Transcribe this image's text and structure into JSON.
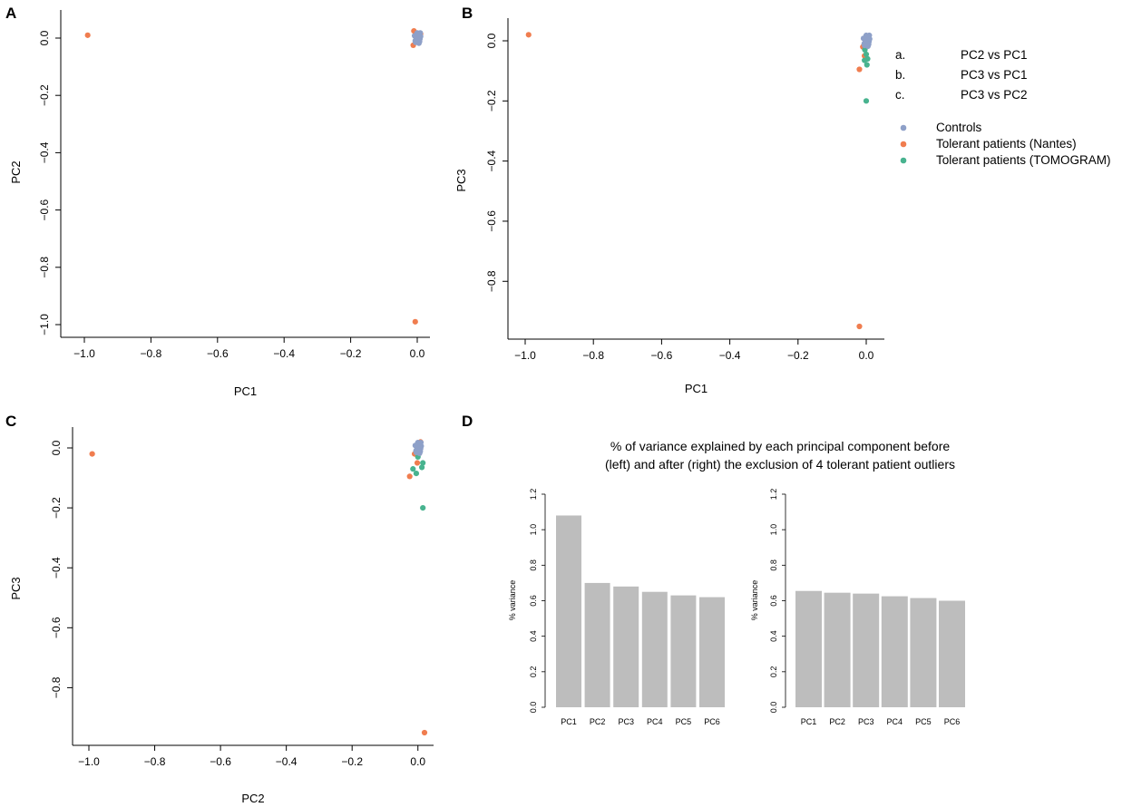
{
  "panel_letters": {
    "a": "A",
    "b": "B",
    "c": "C",
    "d": "D"
  },
  "legend": {
    "panels": [
      {
        "letter": "a.",
        "label": "PC2 vs PC1"
      },
      {
        "letter": "b.",
        "label": "PC3 vs PC1"
      },
      {
        "letter": "c.",
        "label": "PC3 vs PC2"
      }
    ],
    "groups": [
      {
        "label": "Controls",
        "color": "#8ea0c8"
      },
      {
        "label": "Tolerant patients (Nantes)",
        "color": "#f07d4f"
      },
      {
        "label": "Tolerant patients (TOMOGRAM)",
        "color": "#48b38f"
      }
    ]
  },
  "chart_data": [
    {
      "id": "A",
      "type": "scatter",
      "title": "",
      "xlabel": "PC1",
      "ylabel": "PC2",
      "xlim": [
        -1.0,
        0.0
      ],
      "ylim": [
        -1.0,
        0.0
      ],
      "xticks": [
        -1.0,
        -0.8,
        -0.6,
        -0.4,
        -0.2,
        0.0
      ],
      "yticks": [
        0.0,
        -0.2,
        -0.4,
        -0.6,
        -0.8,
        -1.0
      ],
      "xtick_labels": [
        "−1.0",
        "−0.8",
        "−0.6",
        "−0.4",
        "−0.2",
        "0.0"
      ],
      "ytick_labels": [
        "0.0",
        "−0.2",
        "−0.4",
        "−0.6",
        "−0.8",
        "−1.0"
      ],
      "series": [
        {
          "name": "Controls",
          "color": "#8ea0c8",
          "points": [
            [
              0.0,
              0.0
            ],
            [
              0.004,
              0.01
            ],
            [
              -0.004,
              0.004
            ],
            [
              0.008,
              -0.003
            ],
            [
              0.002,
              -0.008
            ],
            [
              -0.006,
              -0.01
            ],
            [
              0.006,
              0.014
            ],
            [
              0.0,
              0.018
            ],
            [
              -0.003,
              -0.004
            ],
            [
              0.01,
              0.006
            ],
            [
              -0.008,
              0.008
            ],
            [
              0.003,
              0.003
            ],
            [
              0.007,
              -0.012
            ],
            [
              -0.002,
              0.012
            ],
            [
              0.009,
              0.018
            ],
            [
              -0.005,
              -0.015
            ],
            [
              0.005,
              -0.018
            ],
            [
              0.001,
              0.007
            ]
          ]
        },
        {
          "name": "Tolerant patients (Nantes)",
          "color": "#f07d4f",
          "points": [
            [
              -0.99,
              0.01
            ],
            [
              -0.006,
              -0.99
            ],
            [
              -0.01,
              0.025
            ],
            [
              -0.012,
              -0.025
            ],
            [
              0.006,
              -0.012
            ],
            [
              0.01,
              0.015
            ]
          ]
        },
        {
          "name": "Tolerant patients (TOMOGRAM)",
          "color": "#48b38f",
          "points": [
            [
              0.002,
              -0.005
            ],
            [
              -0.003,
              0.006
            ],
            [
              0.006,
              0.002
            ],
            [
              -0.005,
              -0.008
            ],
            [
              0.004,
              0.01
            ],
            [
              0.0,
              -0.003
            ]
          ]
        }
      ]
    },
    {
      "id": "B",
      "type": "scatter",
      "title": "",
      "xlabel": "PC1",
      "ylabel": "PC3",
      "xlim": [
        -1.0,
        0.0
      ],
      "ylim": [
        -0.95,
        0.0
      ],
      "xticks": [
        -1.0,
        -0.8,
        -0.6,
        -0.4,
        -0.2,
        0.0
      ],
      "yticks": [
        0.0,
        -0.2,
        -0.4,
        -0.6,
        -0.8
      ],
      "xtick_labels": [
        "−1.0",
        "−0.8",
        "−0.6",
        "−0.4",
        "−0.2",
        "0.0"
      ],
      "ytick_labels": [
        "0.0",
        "−0.2",
        "−0.4",
        "−0.6",
        "−0.8"
      ],
      "series": [
        {
          "name": "Controls",
          "color": "#8ea0c8",
          "points": [
            [
              0.0,
              0.0
            ],
            [
              0.004,
              0.01
            ],
            [
              -0.004,
              0.004
            ],
            [
              0.008,
              -0.003
            ],
            [
              0.002,
              -0.008
            ],
            [
              -0.006,
              -0.01
            ],
            [
              0.006,
              0.014
            ],
            [
              0.0,
              0.018
            ],
            [
              -0.003,
              -0.004
            ],
            [
              0.01,
              0.006
            ],
            [
              -0.008,
              0.008
            ],
            [
              0.003,
              0.003
            ],
            [
              0.007,
              -0.012
            ],
            [
              -0.002,
              0.012
            ],
            [
              0.009,
              0.018
            ],
            [
              -0.005,
              -0.015
            ],
            [
              0.005,
              -0.018
            ],
            [
              0.001,
              0.007
            ]
          ]
        },
        {
          "name": "Tolerant patients (Nantes)",
          "color": "#f07d4f",
          "points": [
            [
              -0.99,
              0.02
            ],
            [
              -0.02,
              -0.95
            ],
            [
              -0.02,
              -0.095
            ],
            [
              -0.005,
              -0.05
            ],
            [
              -0.01,
              -0.02
            ],
            [
              0.006,
              -0.012
            ]
          ]
        },
        {
          "name": "Tolerant patients (TOMOGRAM)",
          "color": "#48b38f",
          "points": [
            [
              0.0,
              -0.2
            ],
            [
              -0.005,
              -0.065
            ],
            [
              0.002,
              -0.08
            ],
            [
              0.0,
              -0.045
            ],
            [
              -0.004,
              -0.03
            ],
            [
              0.004,
              -0.06
            ]
          ]
        }
      ]
    },
    {
      "id": "C",
      "type": "scatter",
      "title": "",
      "xlabel": "PC2",
      "ylabel": "PC3",
      "xlim": [
        -1.0,
        0.02
      ],
      "ylim": [
        -0.95,
        0.0
      ],
      "xticks": [
        -1.0,
        -0.8,
        -0.6,
        -0.4,
        -0.2,
        0.0
      ],
      "yticks": [
        0.0,
        -0.2,
        -0.4,
        -0.6,
        -0.8
      ],
      "xtick_labels": [
        "−1.0",
        "−0.8",
        "−0.6",
        "−0.4",
        "−0.2",
        "0.0"
      ],
      "ytick_labels": [
        "0.0",
        "−0.2",
        "−0.4",
        "−0.6",
        "−0.8"
      ],
      "series": [
        {
          "name": "Controls",
          "color": "#8ea0c8",
          "points": [
            [
              0.0,
              0.0
            ],
            [
              0.004,
              0.01
            ],
            [
              -0.004,
              0.004
            ],
            [
              0.008,
              -0.003
            ],
            [
              0.002,
              -0.008
            ],
            [
              -0.006,
              -0.01
            ],
            [
              0.006,
              0.014
            ],
            [
              0.0,
              0.018
            ],
            [
              -0.003,
              -0.004
            ],
            [
              0.01,
              0.006
            ],
            [
              -0.008,
              0.008
            ],
            [
              0.003,
              0.003
            ],
            [
              0.007,
              -0.012
            ],
            [
              -0.002,
              0.012
            ],
            [
              0.009,
              0.018
            ],
            [
              -0.005,
              -0.015
            ],
            [
              0.005,
              -0.018
            ],
            [
              0.001,
              0.007
            ]
          ]
        },
        {
          "name": "Tolerant patients (Nantes)",
          "color": "#f07d4f",
          "points": [
            [
              -0.99,
              -0.02
            ],
            [
              0.02,
              -0.95
            ],
            [
              -0.025,
              -0.095
            ],
            [
              -0.002,
              -0.05
            ],
            [
              -0.01,
              -0.02
            ],
            [
              0.008,
              0.02
            ],
            [
              0.003,
              -0.012
            ]
          ]
        },
        {
          "name": "Tolerant patients (TOMOGRAM)",
          "color": "#48b38f",
          "points": [
            [
              0.015,
              -0.2
            ],
            [
              -0.015,
              -0.07
            ],
            [
              -0.005,
              -0.085
            ],
            [
              0.012,
              -0.065
            ],
            [
              0.015,
              -0.05
            ],
            [
              0.0,
              -0.03
            ]
          ]
        }
      ]
    },
    {
      "id": "D1",
      "type": "bar",
      "title": "",
      "xlabel": "",
      "ylabel": "% variance",
      "ylim": [
        0.0,
        1.2
      ],
      "yticks": [
        0.0,
        0.2,
        0.4,
        0.6,
        0.8,
        1.0,
        1.2
      ],
      "ytick_labels": [
        "0.0",
        "0.2",
        "0.4",
        "0.6",
        "0.8",
        "1.0",
        "1.2"
      ],
      "color": "#bdbdbd",
      "categories": [
        "PC1",
        "PC2",
        "PC3",
        "PC4",
        "PC5",
        "PC6"
      ],
      "values": [
        1.08,
        0.7,
        0.68,
        0.65,
        0.63,
        0.62
      ]
    },
    {
      "id": "D2",
      "type": "bar",
      "title": "",
      "xlabel": "",
      "ylabel": "% variance",
      "ylim": [
        0.0,
        1.2
      ],
      "yticks": [
        0.0,
        0.2,
        0.4,
        0.6,
        0.8,
        1.0,
        1.2
      ],
      "ytick_labels": [
        "0.0",
        "0.2",
        "0.4",
        "0.6",
        "0.8",
        "1.0",
        "1.2"
      ],
      "color": "#bdbdbd",
      "categories": [
        "PC1",
        "PC2",
        "PC3",
        "PC4",
        "PC5",
        "PC6"
      ],
      "values": [
        0.655,
        0.645,
        0.64,
        0.625,
        0.615,
        0.6
      ]
    }
  ],
  "panel_d_title": {
    "line1": "% of variance explained by each principal component before",
    "line2": "(left) and after (right) the exclusion of 4 tolerant patient outliers"
  }
}
